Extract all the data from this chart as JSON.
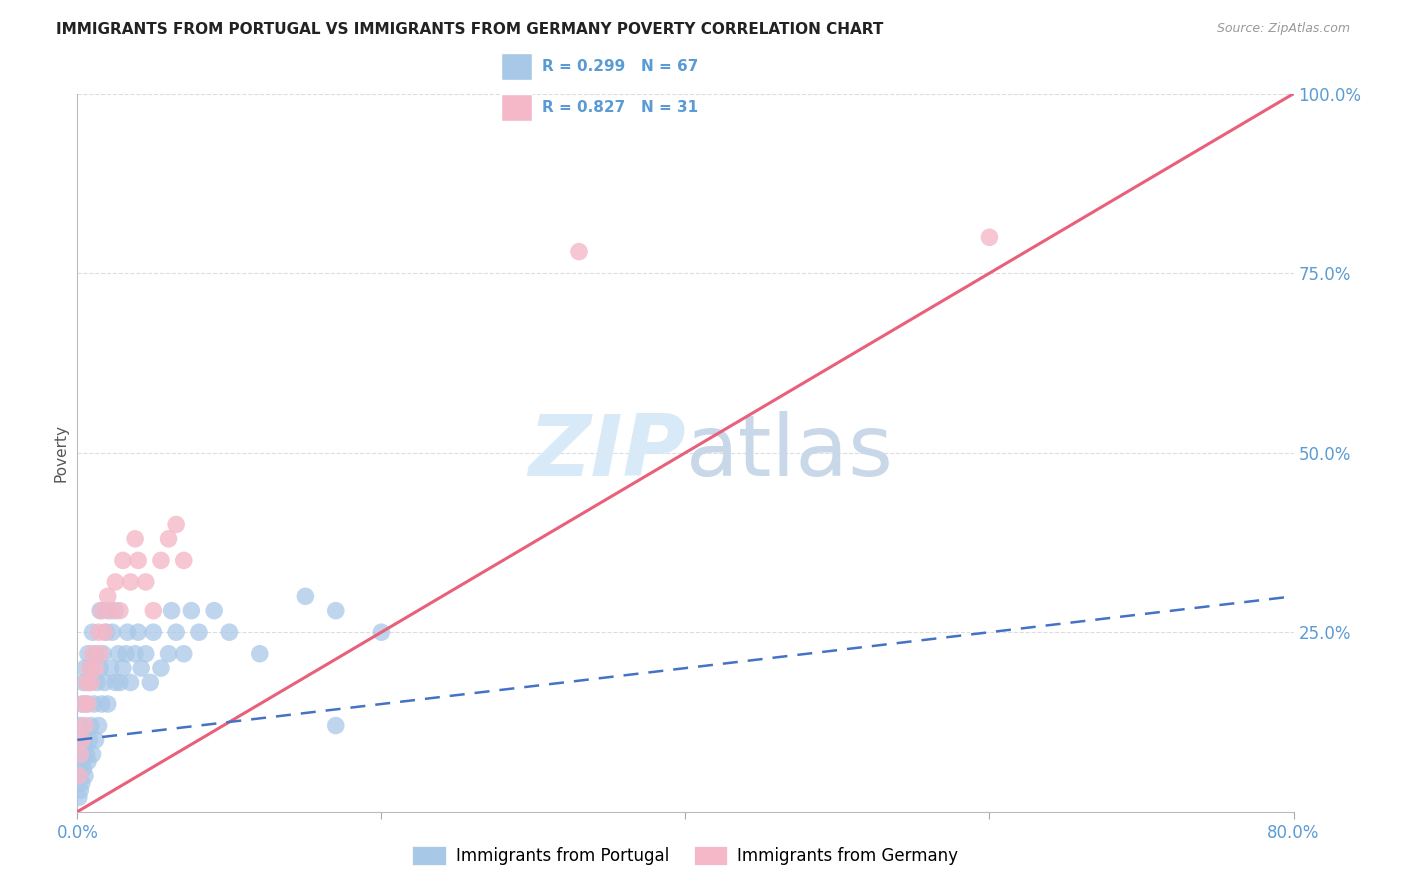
{
  "title": "IMMIGRANTS FROM PORTUGAL VS IMMIGRANTS FROM GERMANY POVERTY CORRELATION CHART",
  "source": "Source: ZipAtlas.com",
  "ylabel": "Poverty",
  "xlim": [
    0.0,
    0.8
  ],
  "ylim": [
    0.0,
    1.0
  ],
  "xticks": [
    0.0,
    0.2,
    0.4,
    0.6,
    0.8
  ],
  "xtick_labels": [
    "0.0%",
    "",
    "",
    "",
    "80.0%"
  ],
  "ytick_labels_right": [
    "",
    "25.0%",
    "50.0%",
    "75.0%",
    "100.0%"
  ],
  "yticks": [
    0.0,
    0.25,
    0.5,
    0.75,
    1.0
  ],
  "R_portugal": 0.299,
  "N_portugal": 67,
  "R_germany": 0.827,
  "N_germany": 31,
  "blue_scatter_color": "#A8C8E8",
  "pink_scatter_color": "#F4B8C8",
  "blue_line_color": "#4472C4",
  "pink_line_color": "#E8607A",
  "tick_color": "#5B9BD5",
  "watermark_zip": "ZIP",
  "watermark_atlas": "atlas",
  "watermark_color": "#D8EAF8",
  "background_color": "#ffffff",
  "grid_color": "#DDDDDD",
  "legend_border_color": "#CCCCCC",
  "portugal_x": [
    0.001,
    0.001,
    0.002,
    0.002,
    0.002,
    0.003,
    0.003,
    0.003,
    0.004,
    0.004,
    0.004,
    0.005,
    0.005,
    0.005,
    0.006,
    0.006,
    0.007,
    0.007,
    0.008,
    0.008,
    0.009,
    0.009,
    0.01,
    0.01,
    0.011,
    0.012,
    0.012,
    0.013,
    0.014,
    0.015,
    0.015,
    0.016,
    0.017,
    0.018,
    0.019,
    0.02,
    0.02,
    0.022,
    0.023,
    0.025,
    0.025,
    0.027,
    0.028,
    0.03,
    0.032,
    0.033,
    0.035,
    0.038,
    0.04,
    0.042,
    0.045,
    0.048,
    0.05,
    0.055,
    0.06,
    0.062,
    0.065,
    0.07,
    0.075,
    0.08,
    0.09,
    0.1,
    0.12,
    0.15,
    0.17,
    0.2,
    0.17
  ],
  "portugal_y": [
    0.02,
    0.05,
    0.03,
    0.08,
    0.12,
    0.04,
    0.07,
    0.15,
    0.06,
    0.1,
    0.18,
    0.05,
    0.09,
    0.2,
    0.08,
    0.15,
    0.07,
    0.22,
    0.1,
    0.18,
    0.12,
    0.2,
    0.08,
    0.25,
    0.15,
    0.1,
    0.22,
    0.18,
    0.12,
    0.2,
    0.28,
    0.15,
    0.22,
    0.18,
    0.25,
    0.15,
    0.28,
    0.2,
    0.25,
    0.18,
    0.28,
    0.22,
    0.18,
    0.2,
    0.22,
    0.25,
    0.18,
    0.22,
    0.25,
    0.2,
    0.22,
    0.18,
    0.25,
    0.2,
    0.22,
    0.28,
    0.25,
    0.22,
    0.28,
    0.25,
    0.28,
    0.25,
    0.22,
    0.3,
    0.28,
    0.25,
    0.12
  ],
  "germany_x": [
    0.001,
    0.002,
    0.003,
    0.004,
    0.005,
    0.006,
    0.007,
    0.008,
    0.009,
    0.01,
    0.012,
    0.014,
    0.015,
    0.016,
    0.018,
    0.02,
    0.022,
    0.025,
    0.028,
    0.03,
    0.035,
    0.038,
    0.04,
    0.045,
    0.05,
    0.055,
    0.06,
    0.065,
    0.07,
    0.6,
    0.33
  ],
  "germany_y": [
    0.05,
    0.08,
    0.1,
    0.15,
    0.12,
    0.18,
    0.15,
    0.2,
    0.18,
    0.22,
    0.2,
    0.25,
    0.22,
    0.28,
    0.25,
    0.3,
    0.28,
    0.32,
    0.28,
    0.35,
    0.32,
    0.38,
    0.35,
    0.32,
    0.28,
    0.35,
    0.38,
    0.4,
    0.35,
    0.8,
    0.78
  ],
  "portugal_trendline_x": [
    0.0,
    0.8
  ],
  "portugal_trendline_y": [
    0.1,
    0.3
  ],
  "germany_trendline_x": [
    0.0,
    0.8
  ],
  "germany_trendline_y": [
    0.0,
    1.0
  ]
}
